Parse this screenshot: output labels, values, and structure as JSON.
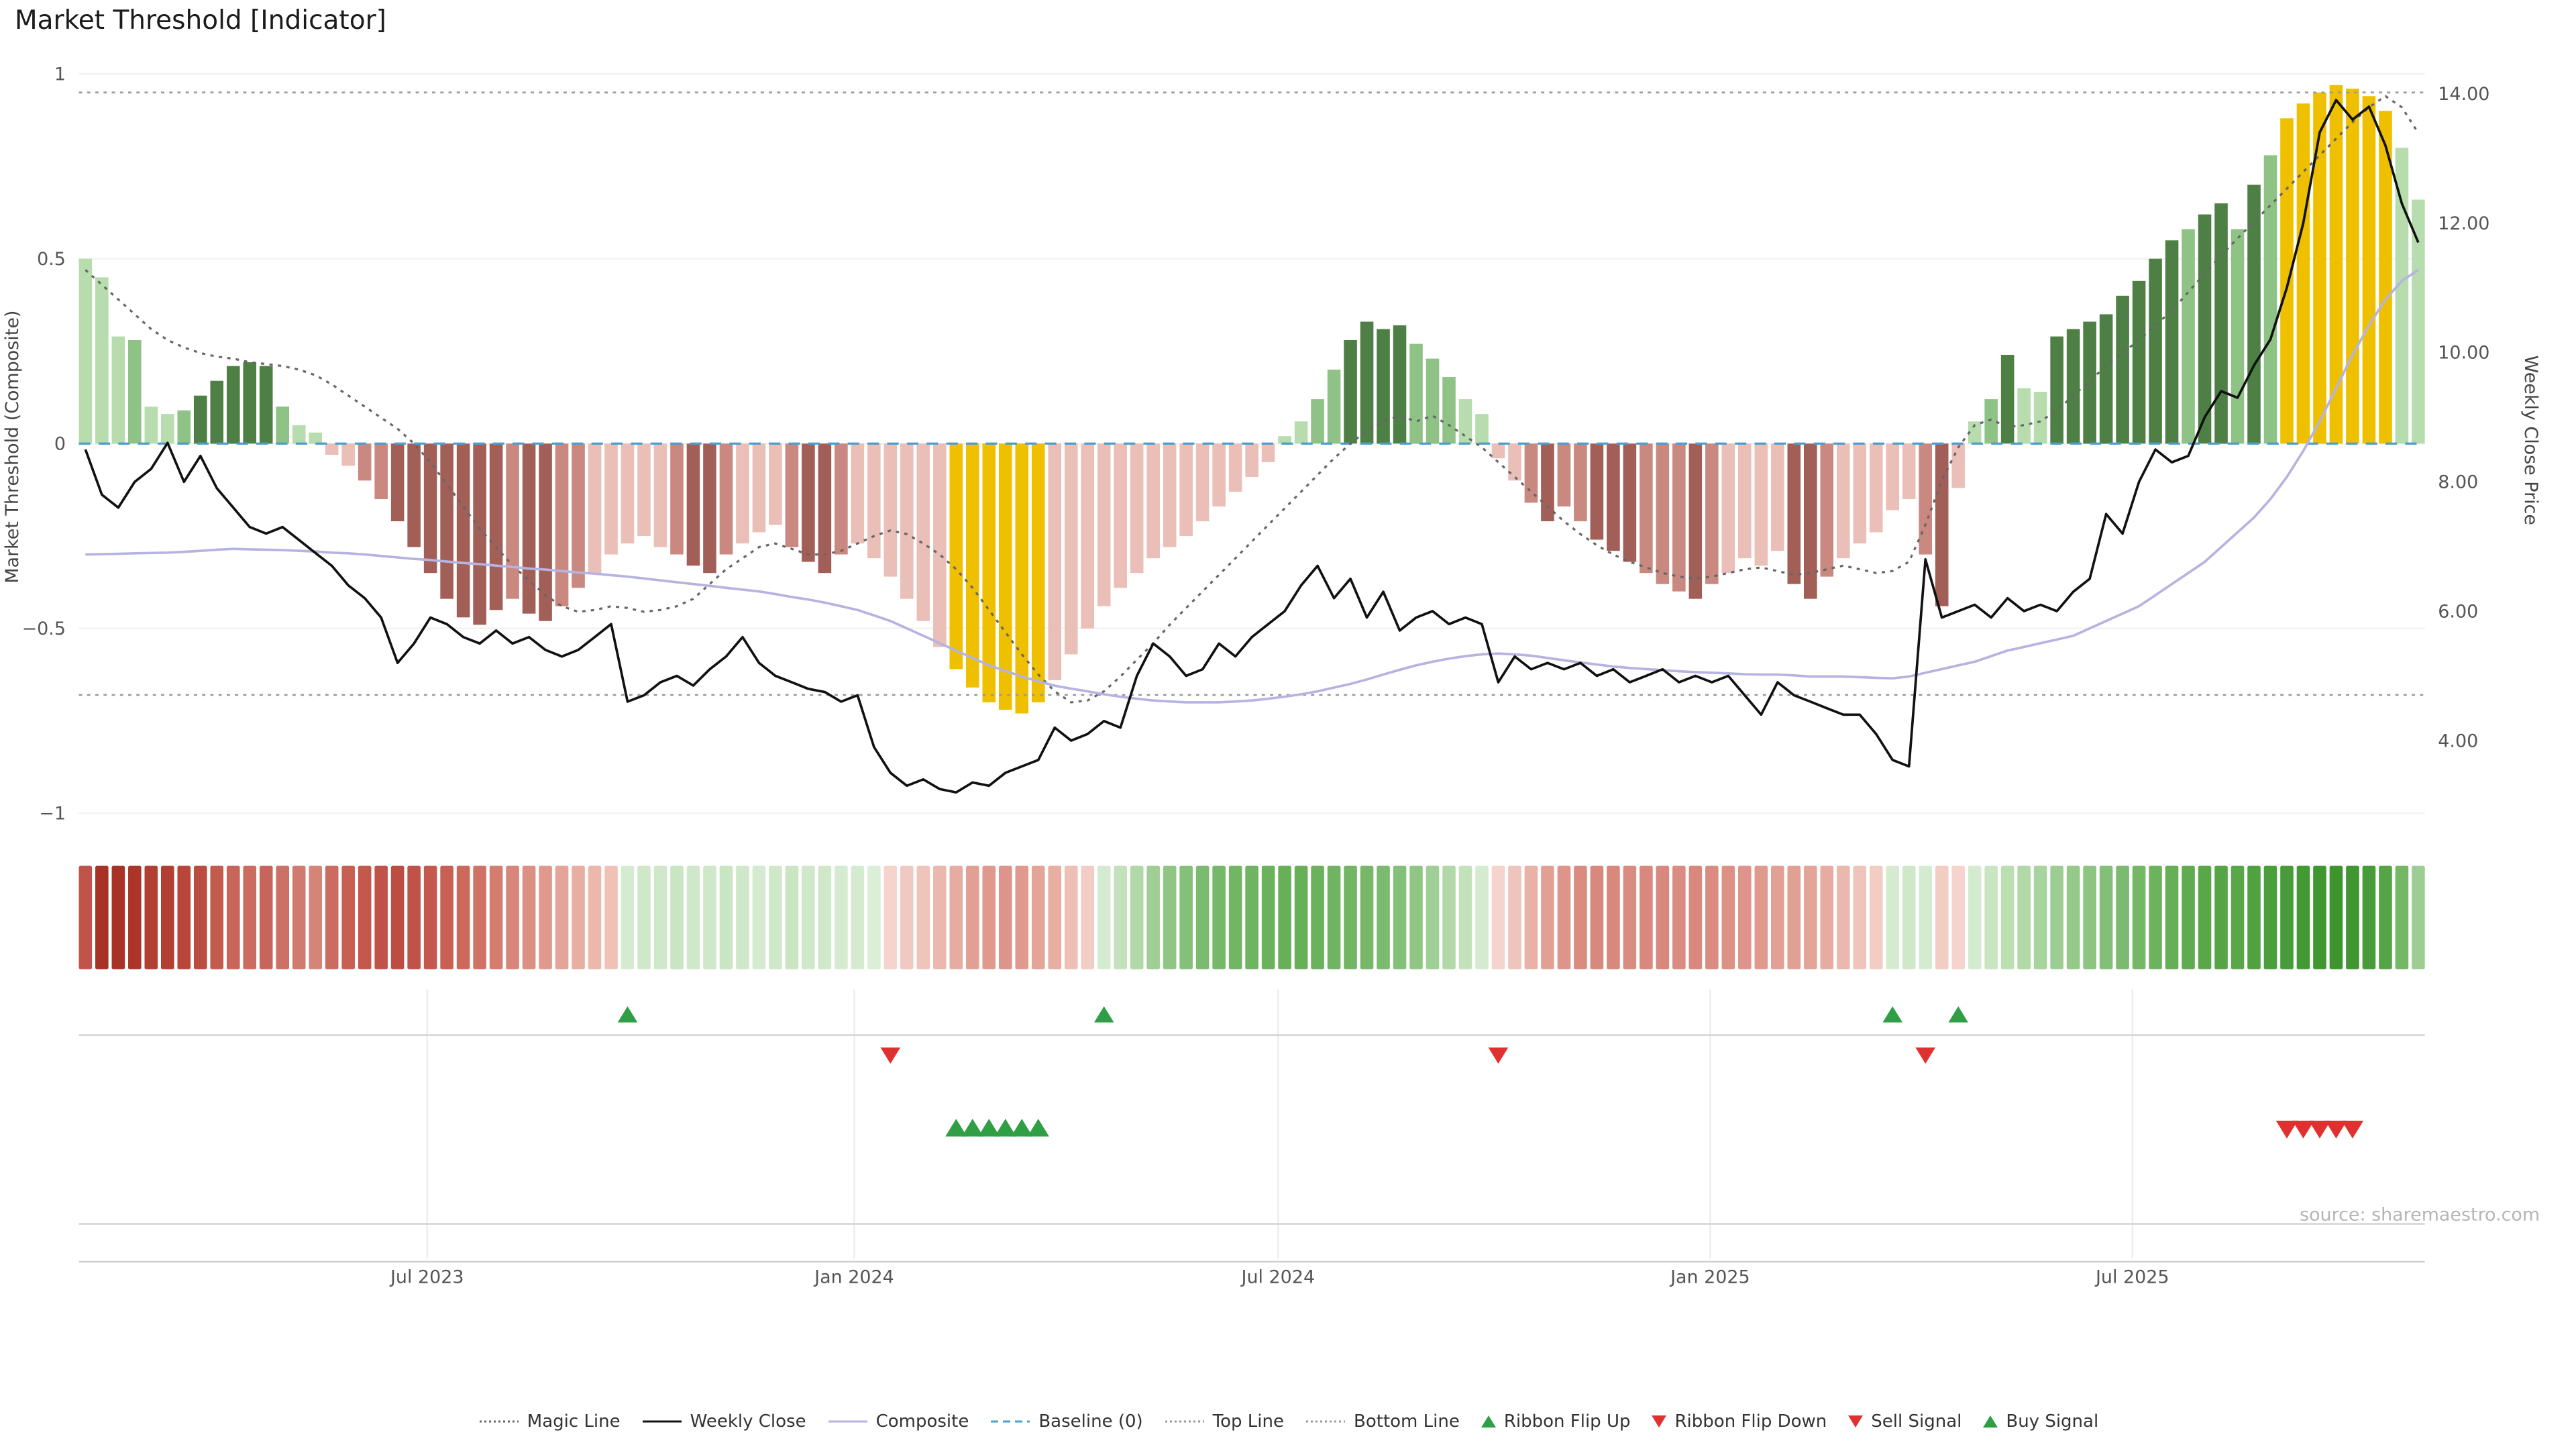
{
  "title": "Market Threshold [Indicator]",
  "source": "source: sharemaestro.com",
  "axes": {
    "left_label": "Market Threshold (Composite)",
    "right_label": "Weekly Close Price"
  },
  "colors": {
    "weekly_close": "#111111",
    "composite_line": "#b7b3e0",
    "magic_line": "#666666",
    "baseline": "#4d9fcb",
    "top_bottom_line": "#9a9a9a",
    "flip_up_green": "#2f9e44",
    "flip_down_red": "#e03131",
    "gold_extreme": "#efc000"
  },
  "legend": [
    {
      "label": "Magic Line",
      "marker": "dotted",
      "color": "#666666"
    },
    {
      "label": "Weekly Close",
      "marker": "solid",
      "color": "#111111"
    },
    {
      "label": "Composite",
      "marker": "solid",
      "color": "#b7b3e0"
    },
    {
      "label": "Baseline (0)",
      "marker": "dashed",
      "color": "#4d9fcb"
    },
    {
      "label": "Top Line",
      "marker": "dotted",
      "color": "#9a9a9a"
    },
    {
      "label": "Bottom Line",
      "marker": "dotted",
      "color": "#9a9a9a"
    },
    {
      "label": "Ribbon Flip Up",
      "marker": "triangle-up",
      "color": "#2f9e44"
    },
    {
      "label": "Ribbon Flip Down",
      "marker": "triangle-down",
      "color": "#e03131"
    },
    {
      "label": "Sell Signal",
      "marker": "triangle-down",
      "color": "#e03131"
    },
    {
      "label": "Buy Signal",
      "marker": "triangle-up",
      "color": "#2f9e44"
    }
  ],
  "chart_data": {
    "type": "bar+line",
    "panels": [
      "indicator_main",
      "trend_ribbon",
      "ribbon_flips",
      "trade_signals"
    ],
    "weeks": 143,
    "x_ticks": [
      {
        "week": 21.2,
        "label": "Jul 2023"
      },
      {
        "week": 47.2,
        "label": "Jan 2024"
      },
      {
        "week": 73.0,
        "label": "Jul 2024"
      },
      {
        "week": 99.3,
        "label": "Jan 2025"
      },
      {
        "week": 125.0,
        "label": "Jul 2025"
      }
    ],
    "left_axis": {
      "label": "Market Threshold (Composite)",
      "range": [
        -1.05,
        1.05
      ],
      "ticks": [
        {
          "v": 1,
          "label": "1"
        },
        {
          "v": 0.5,
          "label": "0.5"
        },
        {
          "v": 0,
          "label": "0"
        },
        {
          "v": -0.5,
          "label": "−0.5"
        },
        {
          "v": -1,
          "label": "−1"
        }
      ]
    },
    "right_axis": {
      "label": "Weekly Close Price",
      "range": [
        2.6,
        14.6
      ],
      "ticks": [
        {
          "v": 14,
          "label": "14.00"
        },
        {
          "v": 12,
          "label": "12.00"
        },
        {
          "v": 10,
          "label": "10.00"
        },
        {
          "v": 8,
          "label": "8.00"
        },
        {
          "v": 6,
          "label": "6.00"
        },
        {
          "v": 4,
          "label": "4.00"
        }
      ]
    },
    "reference_lines": {
      "baseline": 0,
      "top_line": 0.95,
      "bottom_line": -0.68
    },
    "palette": {
      "lg": "#b7dcae",
      "mg": "#8fc285",
      "dg": "#4e8045",
      "lr": "#eabfb8",
      "mr": "#c98880",
      "dr": "#a15f58",
      "au": "#efc000"
    },
    "series_bars": {
      "name": "Market Threshold (Composite) bars",
      "axis": "left",
      "values": [
        0.5,
        0.45,
        0.29,
        0.28,
        0.1,
        0.08,
        0.09,
        0.13,
        0.17,
        0.21,
        0.22,
        0.21,
        0.1,
        0.05,
        0.03,
        -0.03,
        -0.06,
        -0.1,
        -0.15,
        -0.21,
        -0.28,
        -0.35,
        -0.42,
        -0.47,
        -0.49,
        -0.45,
        -0.42,
        -0.46,
        -0.48,
        -0.44,
        -0.39,
        -0.35,
        -0.3,
        -0.27,
        -0.25,
        -0.28,
        -0.3,
        -0.33,
        -0.35,
        -0.3,
        -0.27,
        -0.24,
        -0.22,
        -0.28,
        -0.32,
        -0.35,
        -0.3,
        -0.27,
        -0.31,
        -0.36,
        -0.42,
        -0.48,
        -0.55,
        -0.61,
        -0.66,
        -0.7,
        -0.72,
        -0.73,
        -0.7,
        -0.64,
        -0.57,
        -0.5,
        -0.44,
        -0.39,
        -0.35,
        -0.31,
        -0.28,
        -0.25,
        -0.21,
        -0.17,
        -0.13,
        -0.09,
        -0.05,
        0.02,
        0.06,
        0.12,
        0.2,
        0.28,
        0.33,
        0.31,
        0.32,
        0.27,
        0.23,
        0.18,
        0.12,
        0.08,
        -0.04,
        -0.1,
        -0.16,
        -0.21,
        -0.17,
        -0.21,
        -0.26,
        -0.29,
        -0.32,
        -0.35,
        -0.38,
        -0.4,
        -0.42,
        -0.38,
        -0.35,
        -0.31,
        -0.33,
        -0.29,
        -0.38,
        -0.42,
        -0.36,
        -0.31,
        -0.27,
        -0.24,
        -0.18,
        -0.15,
        -0.3,
        -0.44,
        -0.12,
        0.06,
        0.12,
        0.24,
        0.15,
        0.14,
        0.29,
        0.31,
        0.33,
        0.35,
        0.4,
        0.44,
        0.5,
        0.55,
        0.58,
        0.62,
        0.65,
        0.58,
        0.7,
        0.78,
        0.88,
        0.92,
        0.95,
        0.97,
        0.96,
        0.94,
        0.9,
        0.8,
        0.66
      ],
      "color_class": [
        "lg",
        "lg",
        "lg",
        "mg",
        "lg",
        "lg",
        "mg",
        "dg",
        "dg",
        "dg",
        "dg",
        "dg",
        "mg",
        "lg",
        "lg",
        "lr",
        "lr",
        "mr",
        "mr",
        "dr",
        "dr",
        "dr",
        "dr",
        "dr",
        "dr",
        "dr",
        "mr",
        "dr",
        "dr",
        "mr",
        "mr",
        "lr",
        "lr",
        "lr",
        "lr",
        "lr",
        "mr",
        "dr",
        "dr",
        "mr",
        "lr",
        "lr",
        "lr",
        "mr",
        "dr",
        "dr",
        "mr",
        "lr",
        "lr",
        "lr",
        "lr",
        "lr",
        "lr",
        "au",
        "au",
        "au",
        "au",
        "au",
        "au",
        "lr",
        "lr",
        "lr",
        "lr",
        "lr",
        "lr",
        "lr",
        "lr",
        "lr",
        "lr",
        "lr",
        "lr",
        "lr",
        "lr",
        "lg",
        "lg",
        "mg",
        "mg",
        "dg",
        "dg",
        "dg",
        "dg",
        "mg",
        "mg",
        "mg",
        "lg",
        "lg",
        "lr",
        "lr",
        "mr",
        "dr",
        "mr",
        "mr",
        "dr",
        "dr",
        "dr",
        "mr",
        "mr",
        "mr",
        "dr",
        "mr",
        "lr",
        "lr",
        "lr",
        "lr",
        "dr",
        "dr",
        "mr",
        "lr",
        "lr",
        "lr",
        "lr",
        "lr",
        "mr",
        "dr",
        "lr",
        "lg",
        "mg",
        "dg",
        "lg",
        "lg",
        "dg",
        "dg",
        "dg",
        "dg",
        "dg",
        "dg",
        "dg",
        "dg",
        "mg",
        "dg",
        "dg",
        "mg",
        "dg",
        "mg",
        "au",
        "au",
        "au",
        "au",
        "au",
        "au",
        "au",
        "lg",
        "lg"
      ]
    },
    "series_lines": {
      "weekly_close": [
        8.5,
        7.8,
        7.6,
        8.0,
        8.2,
        8.6,
        8.0,
        8.4,
        7.9,
        7.6,
        7.3,
        7.2,
        7.3,
        7.1,
        6.9,
        6.7,
        6.4,
        6.2,
        5.9,
        5.2,
        5.5,
        5.9,
        5.8,
        5.6,
        5.5,
        5.7,
        5.5,
        5.6,
        5.4,
        5.3,
        5.4,
        5.6,
        5.8,
        4.6,
        4.7,
        4.9,
        5.0,
        4.85,
        5.1,
        5.3,
        5.6,
        5.2,
        5.0,
        4.9,
        4.8,
        4.75,
        4.6,
        4.7,
        3.9,
        3.5,
        3.3,
        3.4,
        3.25,
        3.2,
        3.35,
        3.3,
        3.5,
        3.6,
        3.7,
        4.2,
        4.0,
        4.1,
        4.3,
        4.2,
        5.0,
        5.5,
        5.3,
        5.0,
        5.1,
        5.5,
        5.3,
        5.6,
        5.8,
        6.0,
        6.4,
        6.7,
        6.2,
        6.5,
        5.9,
        6.3,
        5.7,
        5.9,
        6.0,
        5.8,
        5.9,
        5.8,
        4.9,
        5.3,
        5.1,
        5.2,
        5.1,
        5.2,
        5.0,
        5.1,
        4.9,
        5.0,
        5.1,
        4.9,
        5.0,
        4.9,
        5.0,
        4.7,
        4.4,
        4.9,
        4.7,
        4.6,
        4.5,
        4.4,
        4.4,
        4.1,
        3.7,
        3.6,
        6.8,
        5.9,
        6.0,
        6.1,
        5.9,
        6.2,
        6.0,
        6.1,
        6.0,
        6.3,
        6.5,
        7.5,
        7.2,
        8.0,
        8.5,
        8.3,
        8.4,
        9.0,
        9.4,
        9.3,
        9.8,
        10.2,
        11.0,
        12.0,
        13.4,
        13.9,
        13.6,
        13.8,
        13.2,
        12.3,
        11.7
      ],
      "composite": [
        -0.3,
        -0.299,
        -0.298,
        -0.297,
        -0.296,
        -0.295,
        -0.293,
        -0.29,
        -0.287,
        -0.285,
        -0.286,
        -0.287,
        -0.288,
        -0.29,
        -0.292,
        -0.295,
        -0.297,
        -0.3,
        -0.304,
        -0.308,
        -0.312,
        -0.315,
        -0.319,
        -0.323,
        -0.326,
        -0.33,
        -0.334,
        -0.338,
        -0.341,
        -0.345,
        -0.349,
        -0.352,
        -0.356,
        -0.36,
        -0.365,
        -0.37,
        -0.375,
        -0.38,
        -0.385,
        -0.39,
        -0.395,
        -0.4,
        -0.407,
        -0.415,
        -0.422,
        -0.43,
        -0.44,
        -0.45,
        -0.465,
        -0.48,
        -0.5,
        -0.52,
        -0.54,
        -0.56,
        -0.58,
        -0.6,
        -0.615,
        -0.63,
        -0.643,
        -0.655,
        -0.663,
        -0.67,
        -0.678,
        -0.685,
        -0.69,
        -0.695,
        -0.698,
        -0.7,
        -0.7,
        -0.7,
        -0.698,
        -0.695,
        -0.69,
        -0.685,
        -0.678,
        -0.67,
        -0.66,
        -0.65,
        -0.638,
        -0.625,
        -0.612,
        -0.6,
        -0.59,
        -0.582,
        -0.575,
        -0.57,
        -0.568,
        -0.57,
        -0.574,
        -0.58,
        -0.586,
        -0.592,
        -0.598,
        -0.603,
        -0.607,
        -0.61,
        -0.613,
        -0.616,
        -0.618,
        -0.62,
        -0.622,
        -0.624,
        -0.625,
        -0.625,
        -0.627,
        -0.63,
        -0.63,
        -0.63,
        -0.632,
        -0.634,
        -0.635,
        -0.63,
        -0.62,
        -0.61,
        -0.6,
        -0.59,
        -0.575,
        -0.56,
        -0.55,
        -0.54,
        -0.53,
        -0.52,
        -0.5,
        -0.48,
        -0.46,
        -0.44,
        -0.41,
        -0.38,
        -0.35,
        -0.32,
        -0.28,
        -0.24,
        -0.2,
        -0.15,
        -0.09,
        -0.02,
        0.06,
        0.15,
        0.24,
        0.32,
        0.39,
        0.44,
        0.47
      ],
      "magic_line": [
        0.47,
        0.43,
        0.39,
        0.35,
        0.31,
        0.28,
        0.26,
        0.245,
        0.235,
        0.23,
        0.22,
        0.215,
        0.21,
        0.2,
        0.185,
        0.16,
        0.13,
        0.1,
        0.07,
        0.04,
        0.0,
        -0.05,
        -0.11,
        -0.17,
        -0.23,
        -0.28,
        -0.33,
        -0.37,
        -0.41,
        -0.44,
        -0.455,
        -0.45,
        -0.44,
        -0.445,
        -0.455,
        -0.45,
        -0.44,
        -0.42,
        -0.38,
        -0.34,
        -0.31,
        -0.28,
        -0.27,
        -0.285,
        -0.3,
        -0.3,
        -0.29,
        -0.27,
        -0.25,
        -0.235,
        -0.245,
        -0.27,
        -0.3,
        -0.34,
        -0.39,
        -0.45,
        -0.51,
        -0.57,
        -0.625,
        -0.67,
        -0.7,
        -0.695,
        -0.67,
        -0.63,
        -0.585,
        -0.54,
        -0.49,
        -0.445,
        -0.4,
        -0.355,
        -0.31,
        -0.265,
        -0.22,
        -0.175,
        -0.13,
        -0.085,
        -0.04,
        0.0,
        0.035,
        0.06,
        0.075,
        0.06,
        0.075,
        0.05,
        0.02,
        -0.01,
        -0.05,
        -0.09,
        -0.13,
        -0.17,
        -0.21,
        -0.245,
        -0.275,
        -0.3,
        -0.32,
        -0.335,
        -0.35,
        -0.36,
        -0.365,
        -0.36,
        -0.35,
        -0.34,
        -0.335,
        -0.345,
        -0.355,
        -0.35,
        -0.34,
        -0.33,
        -0.34,
        -0.35,
        -0.345,
        -0.32,
        -0.22,
        -0.1,
        -0.01,
        0.05,
        0.065,
        0.045,
        0.05,
        0.06,
        0.09,
        0.13,
        0.17,
        0.21,
        0.245,
        0.28,
        0.32,
        0.36,
        0.41,
        0.46,
        0.51,
        0.555,
        0.6,
        0.645,
        0.69,
        0.735,
        0.78,
        0.825,
        0.87,
        0.91,
        0.94,
        0.91,
        0.84
      ]
    },
    "ribbon_colors": [
      "#c0544b",
      "#a93226",
      "#a93226",
      "#ab3529",
      "#b23f33",
      "#b23f33",
      "#b8463b",
      "#bb4c41",
      "#c25a4e",
      "#c8655a",
      "#cc6c60",
      "#c8655a",
      "#cc7166",
      "#d07b6f",
      "#d48578",
      "#cc6c60",
      "#c85f53",
      "#c4584d",
      "#c0524a",
      "#bd4c43",
      "#c0524a",
      "#c4584d",
      "#c85f53",
      "#cc685c",
      "#d07265",
      "#d47c6f",
      "#d88679",
      "#dc9083",
      "#e09a8d",
      "#e4a497",
      "#e8aea1",
      "#ecb8ab",
      "#f0c2b6",
      "#d5ebd0",
      "#cfe8c9",
      "#cfe8c9",
      "#c9e5c2",
      "#cfe8c9",
      "#cfe8c9",
      "#c9e5c2",
      "#cfe8c9",
      "#d5ebd0",
      "#cfe8c9",
      "#c9e5c2",
      "#cfe8c9",
      "#cfe8c9",
      "#d5ebd0",
      "#d5ebd0",
      "#dbeed6",
      "#f4d4cd",
      "#f0cac2",
      "#eec4bb",
      "#eab8ae",
      "#e6aca1",
      "#e2a094",
      "#e09a8d",
      "#de948a",
      "#e09a8d",
      "#e4a497",
      "#e8aea1",
      "#eebfb4",
      "#f2cdc4",
      "#d5ebd0",
      "#c3e2bb",
      "#b1d8a7",
      "#a0cf95",
      "#90c684",
      "#85c078",
      "#7cbb6f",
      "#76b868",
      "#72b663",
      "#6fb460",
      "#6bb25c",
      "#68b058",
      "#68b058",
      "#6bb25c",
      "#6fb460",
      "#72b663",
      "#76b868",
      "#7cbb6f",
      "#85c078",
      "#90c684",
      "#a0cf95",
      "#b1d8a7",
      "#c3e2bb",
      "#d5ebd0",
      "#f4d4cd",
      "#eec4bb",
      "#e8b2a7",
      "#e2a094",
      "#de948a",
      "#da8c80",
      "#d8887c",
      "#d8887c",
      "#da8c80",
      "#d8887c",
      "#d8887c",
      "#da8c80",
      "#d8887c",
      "#da8c80",
      "#dc9184",
      "#de948a",
      "#e09a8d",
      "#e2a094",
      "#e2a094",
      "#e4a497",
      "#e6aca1",
      "#eab8ae",
      "#eec4bb",
      "#f2cdc4",
      "#d5ebd0",
      "#cfe8c9",
      "#d5ebd0",
      "#f2cdc4",
      "#f4d4cd",
      "#d5ebd0",
      "#c9e5c2",
      "#bcdfb2",
      "#b1d8a7",
      "#a8d49d",
      "#9ecd93",
      "#95c98a",
      "#8cc480",
      "#83bf77",
      "#7cbb6f",
      "#74b765",
      "#6db35e",
      "#66af56",
      "#60ab50",
      "#5aa74a",
      "#55a445",
      "#5aa74a",
      "#50a140",
      "#4b9e3c",
      "#479b38",
      "#439934",
      "#409732",
      "#3e9530",
      "#409732",
      "#479b38",
      "#55a445",
      "#74b765",
      "#9ecd93"
    ],
    "signals": {
      "ribbon_flip_up_weeks": [
        33,
        62,
        110,
        114
      ],
      "ribbon_flip_down_weeks": [
        49,
        86,
        112
      ],
      "buy_signal_weeks": [
        53,
        54,
        55,
        56,
        57,
        58
      ],
      "sell_signal_weeks": [
        134,
        135,
        136,
        137,
        138
      ]
    }
  }
}
